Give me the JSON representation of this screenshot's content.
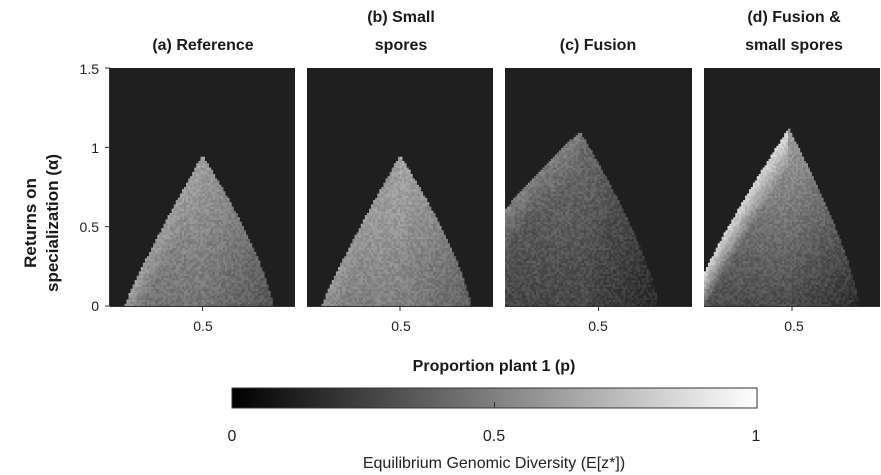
{
  "chart_data": {
    "type": "heatmap",
    "colormap": "gray",
    "background_color": "#1f1f1f",
    "panels": [
      {
        "title_lines": [
          "(a) Reference"
        ],
        "region": "triangle",
        "peak_x": 0.5,
        "peak_y": 0.95,
        "left_x": 0.08,
        "right_x": 0.88,
        "base_value": 0.45,
        "edge_value": 0.62,
        "peak_value": 0.75
      },
      {
        "title_lines": [
          "(b) Small",
          "spores"
        ],
        "region": "triangle",
        "peak_x": 0.5,
        "peak_y": 0.95,
        "left_x": 0.08,
        "right_x": 0.88,
        "base_value": 0.5,
        "edge_value": 0.6,
        "peak_value": 0.78
      },
      {
        "title_lines": [
          "(c) Fusion"
        ],
        "region": "triangle",
        "peak_x": 0.4,
        "peak_y": 1.1,
        "left_x": 0.0,
        "right_x": 0.82,
        "left_start_y": 0.6,
        "base_value": 0.28,
        "edge_value": 0.5,
        "peak_value": 0.55
      },
      {
        "title_lines": [
          "(d) Fusion &",
          "small spores"
        ],
        "region": "triangle",
        "peak_x": 0.48,
        "peak_y": 1.12,
        "left_x": 0.0,
        "right_x": 0.88,
        "left_start_y": 0.2,
        "base_value": 0.3,
        "edge_value": 0.85,
        "peak_value": 0.85
      }
    ],
    "x_tick_labels": [
      "0.5"
    ],
    "x_ticks": [
      0.5
    ],
    "xlim": [
      0,
      1
    ],
    "y_tick_labels": [
      "0",
      "0.5",
      "1",
      "1.5"
    ],
    "y_ticks": [
      0,
      0.5,
      1,
      1.5
    ],
    "ylim": [
      0,
      1.5
    ],
    "xlabel": "Proportion plant 1 (p)",
    "ylabel_lines": [
      "Returns on",
      "specialization (α)"
    ],
    "colorbar": {
      "range": [
        0,
        1
      ],
      "tick_labels": [
        "0",
        "0.5",
        "1"
      ],
      "ticks": [
        0,
        0.5,
        1
      ],
      "label": "Equilibrium Genomic Diversity (E[z*])"
    }
  }
}
